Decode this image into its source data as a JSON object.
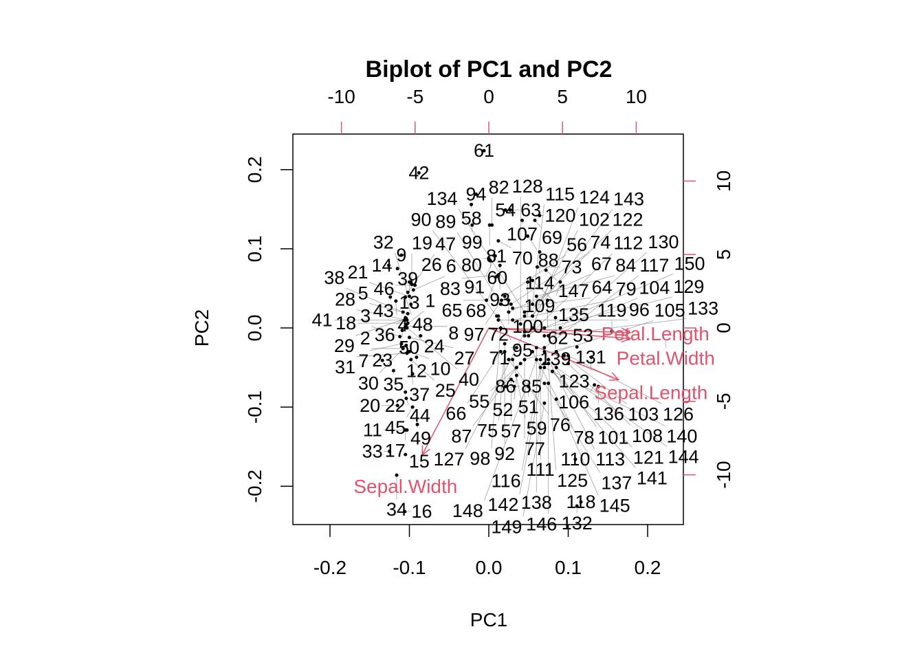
{
  "chart_data": {
    "type": "scatter",
    "subtype": "biplot",
    "title": "Biplot of PC1 and PC2",
    "xlabel": "PC1",
    "ylabel": "PC2",
    "xlim": [
      -0.245,
      0.245
    ],
    "ylim": [
      -0.245,
      0.245
    ],
    "xticks": [
      "-0.2",
      "-0.1",
      "0.0",
      "0.1",
      "0.2"
    ],
    "yticks": [
      "-0.2",
      "-0.1",
      "0.0",
      "0.1",
      "0.2"
    ],
    "top_ticks": [
      "-10",
      "-5",
      "0",
      "5",
      "10"
    ],
    "right_ticks": [
      "-10",
      "-5",
      "0",
      "5",
      "10"
    ],
    "secondary_lim": [
      -13.2,
      13.2
    ],
    "arrow_color": "#DF536B",
    "point_color": "#000000",
    "variables": [
      {
        "name": "Sepal.Length",
        "x": 11.0,
        "y": -4.4
      },
      {
        "name": "Sepal.Width",
        "x": -5.65,
        "y": -10.8
      },
      {
        "name": "Petal.Length",
        "x": 12.0,
        "y": -0.4
      },
      {
        "name": "Petal.Width",
        "x": 12.0,
        "y": -0.9
      }
    ],
    "points": [
      [
        "61",
        -0.006,
        0.224
      ],
      [
        "42",
        -0.088,
        0.196
      ],
      [
        "94",
        -0.016,
        0.169
      ],
      [
        "58",
        -0.022,
        0.156
      ],
      [
        "54",
        0.021,
        0.149
      ],
      [
        "63",
        0.027,
        0.149
      ],
      [
        "107",
        0.042,
        0.136
      ],
      [
        "120",
        0.064,
        0.142
      ],
      [
        "69",
        0.058,
        0.136
      ],
      [
        "99",
        -0.021,
        0.13
      ],
      [
        "81",
        0.001,
        0.13
      ],
      [
        "82",
        0.004,
        0.13
      ],
      [
        "70",
        0.012,
        0.11
      ],
      [
        "88",
        0.049,
        0.116
      ],
      [
        "114",
        0.064,
        0.096
      ],
      [
        "80",
        0.0,
        0.088
      ],
      [
        "60",
        0.002,
        0.085
      ],
      [
        "91",
        0.008,
        0.091
      ],
      [
        "93",
        0.014,
        0.079
      ],
      [
        "73",
        0.061,
        0.077
      ],
      [
        "147",
        0.072,
        0.073
      ],
      [
        "109",
        0.09,
        0.058
      ],
      [
        "68",
        0.01,
        0.065
      ],
      [
        "83",
        0.012,
        0.067
      ],
      [
        "100",
        0.049,
        0.058
      ],
      [
        "135",
        0.055,
        0.06
      ],
      [
        "65",
        -0.003,
        0.035
      ],
      [
        "62",
        0.074,
        0.035
      ],
      [
        "72",
        0.025,
        0.035
      ],
      [
        "97",
        0.016,
        0.035
      ],
      [
        "95",
        0.012,
        0.015
      ],
      [
        "139",
        0.084,
        0.013
      ],
      [
        "119",
        0.155,
        -0.004
      ],
      [
        "131",
        0.111,
        -0.024
      ],
      [
        "123",
        0.129,
        -0.037
      ],
      [
        "106",
        0.133,
        -0.072
      ],
      [
        "136",
        0.138,
        -0.074
      ],
      [
        "118",
        0.116,
        -0.22
      ],
      [
        "132",
        0.111,
        -0.225
      ],
      [
        "110",
        0.109,
        -0.166
      ],
      [
        "86",
        0.021,
        -0.074
      ],
      [
        "85",
        0.032,
        -0.074
      ],
      [
        "51",
        0.05,
        -0.074
      ],
      [
        "71",
        0.035,
        -0.025
      ],
      [
        "9",
        -0.11,
        0.092
      ],
      [
        "14",
        -0.126,
        0.079
      ],
      [
        "39",
        -0.115,
        0.075
      ],
      [
        "13",
        -0.1,
        0.058
      ],
      [
        "26",
        -0.098,
        0.058
      ],
      [
        "46",
        -0.093,
        0.054
      ],
      [
        "43",
        -0.124,
        0.039
      ],
      [
        "4",
        -0.117,
        0.034
      ],
      [
        "48",
        -0.105,
        0.039
      ],
      [
        "36",
        -0.105,
        0.013
      ],
      [
        "50",
        -0.109,
        -0.003
      ],
      [
        "24",
        -0.086,
        -0.01
      ],
      [
        "23",
        -0.134,
        -0.041
      ],
      [
        "12",
        -0.091,
        -0.037
      ],
      [
        "35",
        -0.12,
        -0.054
      ],
      [
        "37",
        -0.096,
        -0.058
      ],
      [
        "22",
        -0.105,
        -0.081
      ],
      [
        "44",
        -0.104,
        -0.089
      ],
      [
        "20",
        -0.115,
        -0.098
      ],
      [
        "45",
        -0.096,
        -0.1
      ],
      [
        "49",
        -0.09,
        -0.122
      ],
      [
        "17",
        -0.105,
        -0.129
      ],
      [
        "11",
        -0.103,
        -0.129
      ],
      [
        "33",
        -0.125,
        -0.156
      ],
      [
        "15",
        -0.105,
        -0.16
      ],
      [
        "34",
        -0.116,
        -0.186
      ],
      [
        "16",
        -0.106,
        -0.232
      ],
      [
        "1",
        -0.104,
        0.004
      ],
      [
        "2",
        -0.108,
        -0.026
      ],
      [
        "3",
        -0.112,
        -0.011
      ],
      [
        "5",
        -0.102,
        0.018
      ],
      [
        "6",
        -0.095,
        0.048
      ],
      [
        "7",
        -0.11,
        -0.02
      ],
      [
        "8",
        -0.105,
        0.002
      ],
      [
        "10",
        -0.1,
        -0.03
      ],
      [
        "18",
        -0.102,
        0.006
      ],
      [
        "19",
        -0.097,
        0.055
      ],
      [
        "21",
        -0.1,
        0.04
      ],
      [
        "25",
        -0.098,
        -0.04
      ],
      [
        "27",
        -0.1,
        -0.012
      ],
      [
        "28",
        -0.103,
        0.01
      ],
      [
        "29",
        -0.104,
        0.012
      ],
      [
        "30",
        -0.104,
        -0.022
      ],
      [
        "31",
        -0.103,
        -0.032
      ],
      [
        "32",
        -0.098,
        0.03
      ],
      [
        "38",
        -0.108,
        0.02
      ],
      [
        "40",
        -0.103,
        0.0
      ],
      [
        "41",
        -0.106,
        0.01
      ],
      [
        "47",
        -0.102,
        0.045
      ],
      [
        "52",
        0.035,
        -0.06
      ],
      [
        "53",
        0.045,
        -0.04
      ],
      [
        "55",
        0.04,
        -0.045
      ],
      [
        "56",
        0.02,
        0.04
      ],
      [
        "57",
        0.028,
        -0.065
      ],
      [
        "59",
        0.03,
        -0.04
      ],
      [
        "64",
        0.03,
        0.025
      ],
      [
        "66",
        0.015,
        -0.03
      ],
      [
        "67",
        0.025,
        0.02
      ],
      [
        "74",
        0.028,
        0.03
      ],
      [
        "75",
        0.02,
        -0.03
      ],
      [
        "76",
        0.025,
        -0.04
      ],
      [
        "77",
        0.045,
        -0.04
      ],
      [
        "78",
        0.055,
        -0.03
      ],
      [
        "79",
        0.03,
        0.01
      ],
      [
        "84",
        0.06,
        0.04
      ],
      [
        "87",
        0.035,
        -0.05
      ],
      [
        "89",
        0.015,
        0.03
      ],
      [
        "90",
        0.01,
        0.015
      ],
      [
        "92",
        0.02,
        -0.02
      ],
      [
        "96",
        0.012,
        0.01
      ],
      [
        "98",
        0.015,
        0.0
      ],
      [
        "101",
        0.07,
        -0.03
      ],
      [
        "102",
        0.055,
        0.015
      ],
      [
        "103",
        0.095,
        -0.035
      ],
      [
        "104",
        0.07,
        -0.01
      ],
      [
        "105",
        0.085,
        -0.03
      ],
      [
        "108",
        0.1,
        -0.045
      ],
      [
        "111",
        0.065,
        -0.04
      ],
      [
        "112",
        0.05,
        -0.01
      ],
      [
        "113",
        0.075,
        -0.04
      ],
      [
        "115",
        0.055,
        0.03
      ],
      [
        "116",
        0.065,
        -0.05
      ],
      [
        "117",
        0.07,
        -0.025
      ],
      [
        "121",
        0.08,
        -0.055
      ],
      [
        "122",
        0.045,
        0.015
      ],
      [
        "124",
        0.055,
        0.0
      ],
      [
        "125",
        0.075,
        -0.045
      ],
      [
        "126",
        0.1,
        -0.035
      ],
      [
        "127",
        0.045,
        -0.005
      ],
      [
        "128",
        0.04,
        0.005
      ],
      [
        "129",
        0.07,
        0.0
      ],
      [
        "130",
        0.09,
        0.0
      ],
      [
        "133",
        0.075,
        -0.01
      ],
      [
        "134",
        0.045,
        0.02
      ],
      [
        "137",
        0.07,
        -0.07
      ],
      [
        "138",
        0.06,
        -0.025
      ],
      [
        "140",
        0.07,
        -0.05
      ],
      [
        "141",
        0.08,
        -0.055
      ],
      [
        "142",
        0.07,
        -0.045
      ],
      [
        "143",
        0.055,
        0.015
      ],
      [
        "144",
        0.085,
        -0.05
      ],
      [
        "145",
        0.085,
        -0.09
      ],
      [
        "146",
        0.075,
        -0.07
      ],
      [
        "148",
        0.06,
        -0.04
      ],
      [
        "149",
        0.07,
        -0.095
      ],
      [
        "150",
        0.045,
        -0.01
      ]
    ]
  }
}
